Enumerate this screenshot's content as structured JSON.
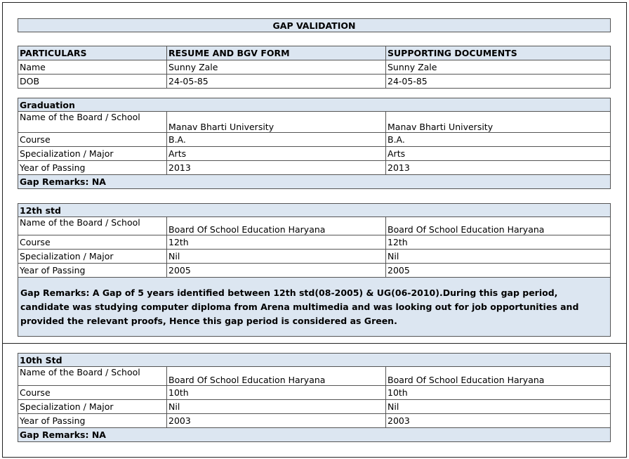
{
  "header": {
    "title": "GAP VALIDATION"
  },
  "table": {
    "header": [
      "PARTICULARS",
      "RESUME AND BGV FORM",
      "SUPPORTING DOCUMENTS"
    ],
    "rows": [
      [
        "Name",
        "Sunny Zale",
        "Sunny Zale"
      ],
      [
        "DOB",
        "24-05-85",
        "24-05-85"
      ]
    ]
  },
  "sections": [
    {
      "title": "Graduation",
      "rows": [
        [
          "Name of the Board / School",
          "Manav Bharti University",
          "Manav Bharti University"
        ],
        [
          "Course",
          "B.A.",
          "B.A."
        ],
        [
          "Specialization / Major",
          "Arts",
          "Arts"
        ],
        [
          "Year of Passing",
          "2013",
          "2013"
        ]
      ],
      "remarks": "Gap Remarks: NA"
    },
    {
      "title": "12th std",
      "rows": [
        [
          "Name of the Board / School",
          "Board Of School Education Haryana",
          "Board Of School Education Haryana"
        ],
        [
          "Course",
          "12th",
          "12th"
        ],
        [
          "Specialization / Major",
          "Nil",
          "Nil"
        ],
        [
          "Year of Passing",
          "2005",
          "2005"
        ]
      ],
      "remarks": "Gap Remarks: A Gap of 5 years identified between 12th std(08-2005) & UG(06-2010).During this gap period, candidate was studying computer diploma from Arena multimedia and was looking out for job opportunities and provided the relevant proofs, Hence this gap period is considered as Green."
    },
    {
      "title": "10th Std",
      "rows": [
        [
          "Name of the Board / School",
          "Board Of School Education Haryana",
          "Board Of School Education Haryana"
        ],
        [
          "Course",
          "10th",
          "10th"
        ],
        [
          "Specialization / Major",
          "Nil",
          "Nil"
        ],
        [
          "Year of Passing",
          "2003",
          "2003"
        ]
      ],
      "remarks": "Gap Remarks: NA"
    }
  ]
}
